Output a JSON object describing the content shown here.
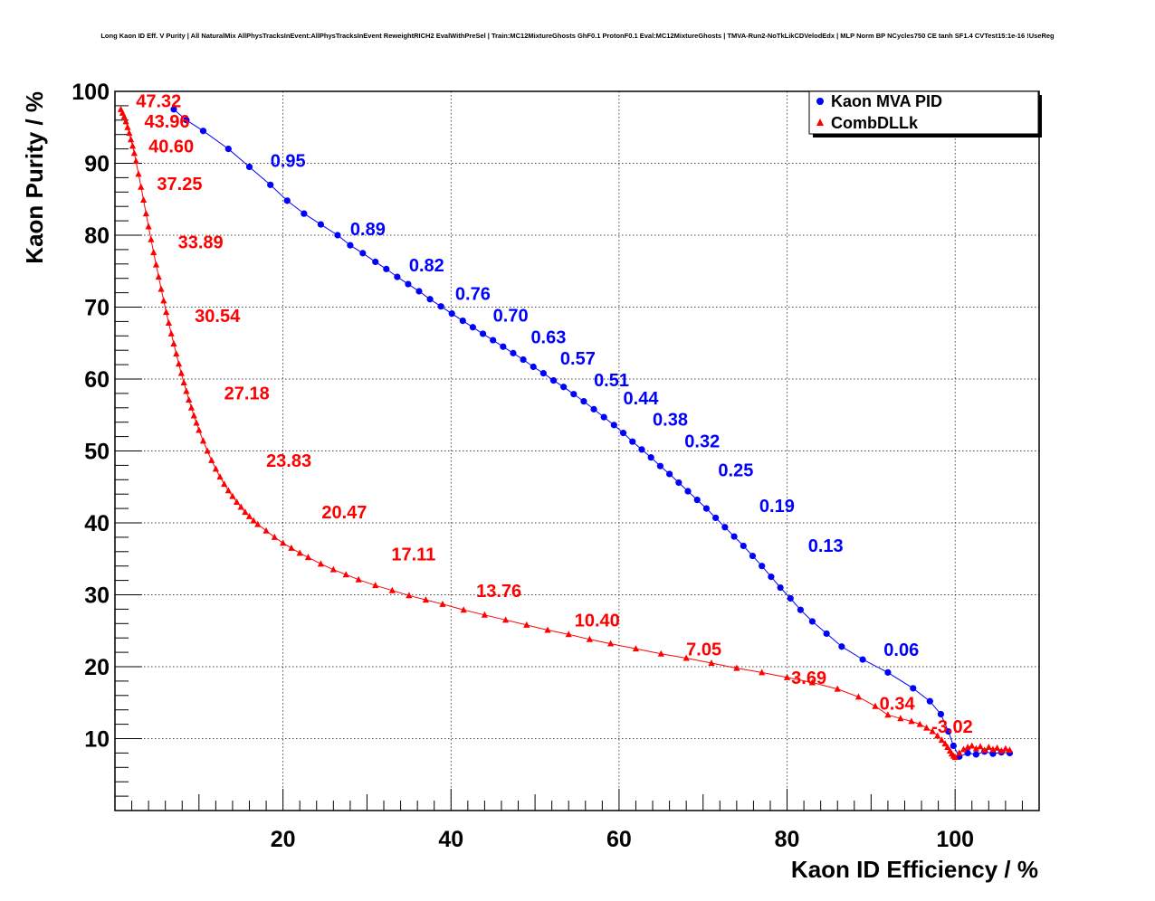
{
  "chart_data": {
    "type": "scatter",
    "title": "Long Kaon ID Eff. V Purity | All NaturalMix AllPhysTracksInEvent:AllPhysTracksInEvent ReweightRICH2 EvalWithPreSel | Train:MC12MixtureGhosts GhF0.1 ProtonF0.1 Eval:MC12MixtureGhosts | TMVA-Run2-NoTkLikCDVelodEdx | MLP Norm BP NCycles750 CE tanh SF1.4 CVTest15:1e-16 !UseReg",
    "xlabel": "Kaon ID Efficiency / %",
    "ylabel": "Kaon Purity / %",
    "xlim": [
      0,
      110
    ],
    "ylim": [
      0,
      100
    ],
    "xticks": [
      20,
      40,
      60,
      80,
      100
    ],
    "yticks": [
      10,
      20,
      30,
      40,
      50,
      60,
      70,
      80,
      90,
      100
    ],
    "grid": true,
    "legend_position": "top-right",
    "series": [
      {
        "name": "Kaon MVA PID",
        "color": "#0000ff",
        "marker": "circle",
        "x": [
          7.0,
          8.5,
          10.5,
          13.5,
          16.0,
          18.5,
          20.5,
          22.5,
          24.5,
          26.5,
          28.0,
          29.5,
          31.0,
          32.3,
          33.6,
          34.9,
          36.2,
          37.5,
          38.8,
          40.1,
          41.4,
          42.6,
          43.8,
          45.0,
          46.2,
          47.4,
          48.6,
          49.8,
          51.0,
          52.2,
          53.4,
          54.6,
          55.8,
          57.0,
          58.2,
          59.4,
          60.5,
          61.6,
          62.7,
          63.8,
          64.9,
          66.0,
          67.1,
          68.2,
          69.3,
          70.4,
          71.5,
          72.6,
          73.7,
          74.8,
          75.9,
          77.0,
          78.1,
          79.2,
          80.4,
          81.6,
          83.0,
          84.7,
          86.5,
          89.0,
          92.0,
          95.0,
          97.0,
          98.3,
          99.2,
          99.8,
          100.5,
          101.5,
          102.5,
          103.5,
          104.5,
          105.5,
          106.5
        ],
        "y": [
          97.5,
          96.0,
          94.5,
          92.0,
          89.5,
          87.0,
          84.8,
          83.0,
          81.5,
          80.0,
          78.6,
          77.5,
          76.3,
          75.3,
          74.2,
          73.2,
          72.2,
          71.1,
          70.1,
          69.1,
          68.1,
          67.2,
          66.3,
          65.4,
          64.5,
          63.6,
          62.7,
          61.7,
          60.8,
          59.8,
          58.9,
          57.9,
          56.9,
          55.8,
          54.7,
          53.6,
          52.5,
          51.3,
          50.2,
          49.1,
          47.9,
          46.8,
          45.6,
          44.4,
          43.2,
          42.0,
          40.7,
          39.4,
          38.1,
          36.8,
          35.4,
          34.0,
          32.5,
          31.0,
          29.5,
          27.9,
          26.3,
          24.6,
          22.8,
          21.0,
          19.2,
          17.0,
          15.2,
          13.4,
          11.0,
          9.0,
          7.5,
          8.0,
          7.8,
          8.2,
          7.9,
          8.1,
          8.0
        ],
        "labels": [
          {
            "text": "0.95",
            "x": 18.5,
            "y": 89.5
          },
          {
            "text": "0.89",
            "x": 28.0,
            "y": 80.0
          },
          {
            "text": "0.82",
            "x": 35.0,
            "y": 75.0
          },
          {
            "text": "0.76",
            "x": 40.5,
            "y": 71.0
          },
          {
            "text": "0.70",
            "x": 45.0,
            "y": 68.0
          },
          {
            "text": "0.63",
            "x": 49.5,
            "y": 65.0
          },
          {
            "text": "0.57",
            "x": 53.0,
            "y": 62.0
          },
          {
            "text": "0.51",
            "x": 57.0,
            "y": 59.0
          },
          {
            "text": "0.44",
            "x": 60.5,
            "y": 56.5
          },
          {
            "text": "0.38",
            "x": 64.0,
            "y": 53.5
          },
          {
            "text": "0.32",
            "x": 67.8,
            "y": 50.5
          },
          {
            "text": "0.25",
            "x": 71.8,
            "y": 46.5
          },
          {
            "text": "0.19",
            "x": 76.7,
            "y": 41.5
          },
          {
            "text": "0.13",
            "x": 82.5,
            "y": 36.0
          },
          {
            "text": "0.06",
            "x": 91.5,
            "y": 21.5
          }
        ]
      },
      {
        "name": "CombDLLk",
        "color": "#ff0000",
        "marker": "triangle",
        "x": [
          0.7,
          0.9,
          1.1,
          1.3,
          1.5,
          1.7,
          1.9,
          2.1,
          2.3,
          2.5,
          2.8,
          3.1,
          3.4,
          3.7,
          4.0,
          4.3,
          4.6,
          4.9,
          5.2,
          5.5,
          5.8,
          6.1,
          6.4,
          6.7,
          7.0,
          7.3,
          7.6,
          7.9,
          8.2,
          8.5,
          8.8,
          9.1,
          9.4,
          9.7,
          10.0,
          10.5,
          11.0,
          11.5,
          12.0,
          12.5,
          13.0,
          13.5,
          14.0,
          14.5,
          15.0,
          15.5,
          16.0,
          16.5,
          17.0,
          18.0,
          19.0,
          20.0,
          21.0,
          22.0,
          23.0,
          24.5,
          26.0,
          27.5,
          29.0,
          31.0,
          33.0,
          35.0,
          37.0,
          39.0,
          41.5,
          44.0,
          46.5,
          49.0,
          51.5,
          54.0,
          56.5,
          59.0,
          62.0,
          65.0,
          68.0,
          71.0,
          74.0,
          77.0,
          80.0,
          83.0,
          86.0,
          88.5,
          90.5,
          92.0,
          93.5,
          94.8,
          95.8,
          96.6,
          97.3,
          97.9,
          98.4,
          98.8,
          99.1,
          99.4,
          99.6,
          99.8,
          100.0,
          100.5,
          101.0,
          101.5,
          102.0,
          102.5,
          103.0,
          103.5,
          104.0,
          104.5,
          105.0,
          105.5,
          106.0,
          106.5
        ],
        "y": [
          97.5,
          97.0,
          96.5,
          95.8,
          95.0,
          94.2,
          93.3,
          92.4,
          91.4,
          90.3,
          88.5,
          86.7,
          84.9,
          83.0,
          81.2,
          79.4,
          77.6,
          75.9,
          74.2,
          72.5,
          70.9,
          69.3,
          67.8,
          66.3,
          64.9,
          63.5,
          62.1,
          60.8,
          59.5,
          58.3,
          57.1,
          56.0,
          54.9,
          53.9,
          52.9,
          51.4,
          50.0,
          48.7,
          47.5,
          46.4,
          45.4,
          44.5,
          43.7,
          42.9,
          42.2,
          41.5,
          40.9,
          40.3,
          39.8,
          38.9,
          38.0,
          37.2,
          36.5,
          35.8,
          35.2,
          34.3,
          33.5,
          32.8,
          32.1,
          31.3,
          30.6,
          29.9,
          29.3,
          28.7,
          27.9,
          27.2,
          26.5,
          25.8,
          25.1,
          24.5,
          23.8,
          23.2,
          22.5,
          21.8,
          21.2,
          20.5,
          19.8,
          19.2,
          18.5,
          17.8,
          16.9,
          15.8,
          14.5,
          13.3,
          12.8,
          12.4,
          12.0,
          11.5,
          11.0,
          10.4,
          9.8,
          9.3,
          8.8,
          8.3,
          7.9,
          7.6,
          7.4,
          8.0,
          8.5,
          8.8,
          9.0,
          8.6,
          8.9,
          8.4,
          8.8,
          8.5,
          8.7,
          8.3,
          8.6,
          8.4
        ],
        "labels": [
          {
            "text": "47.32",
            "x": 2.5,
            "y": 97.8
          },
          {
            "text": "43.96",
            "x": 3.5,
            "y": 95.0
          },
          {
            "text": "40.60",
            "x": 4.0,
            "y": 91.5
          },
          {
            "text": "37.25",
            "x": 5.0,
            "y": 86.3
          },
          {
            "text": "33.89",
            "x": 7.5,
            "y": 78.2
          },
          {
            "text": "30.54",
            "x": 9.5,
            "y": 67.9
          },
          {
            "text": "27.18",
            "x": 13.0,
            "y": 57.2
          },
          {
            "text": "23.83",
            "x": 18.0,
            "y": 47.8
          },
          {
            "text": "20.47",
            "x": 24.6,
            "y": 40.6
          },
          {
            "text": "17.11",
            "x": 32.9,
            "y": 34.8
          },
          {
            "text": "13.76",
            "x": 43.0,
            "y": 29.7
          },
          {
            "text": "10.40",
            "x": 54.7,
            "y": 25.6
          },
          {
            "text": "7.05",
            "x": 68.0,
            "y": 21.6
          },
          {
            "text": "3.69",
            "x": 80.5,
            "y": 17.6
          },
          {
            "text": "0.34",
            "x": 91.0,
            "y": 14.0
          },
          {
            "text": "-3.02",
            "x": 97.2,
            "y": 10.8
          }
        ]
      }
    ]
  }
}
